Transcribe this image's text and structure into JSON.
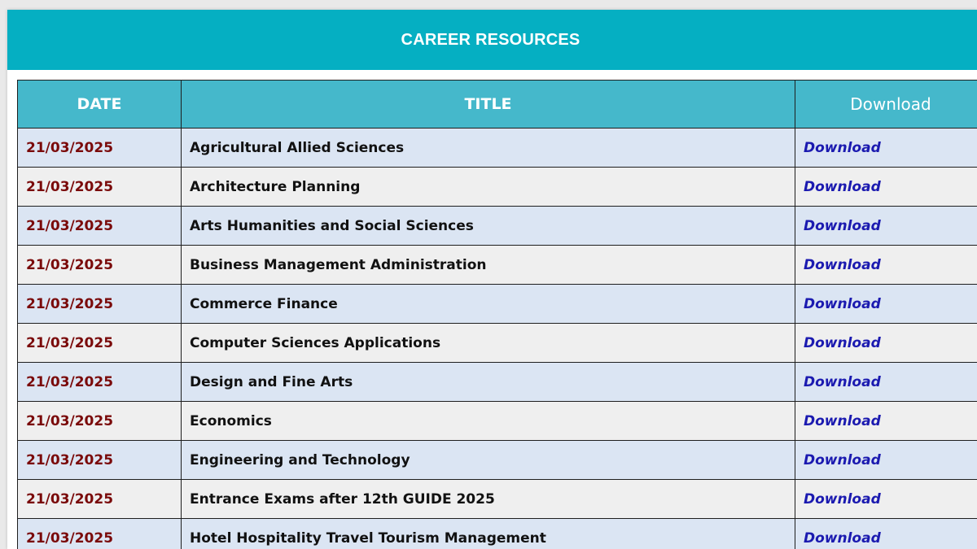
{
  "banner": {
    "title": "CAREER RESOURCES"
  },
  "table": {
    "headers": {
      "date": "DATE",
      "title": "TITLE",
      "download": "Download"
    },
    "rows": [
      {
        "date": "21/03/2025",
        "title": "Agricultural Allied Sciences",
        "download": "Download"
      },
      {
        "date": "21/03/2025",
        "title": "Architecture Planning",
        "download": "Download"
      },
      {
        "date": "21/03/2025",
        "title": "Arts Humanities and Social Sciences",
        "download": "Download"
      },
      {
        "date": "21/03/2025",
        "title": "Business Management Administration",
        "download": "Download"
      },
      {
        "date": "21/03/2025",
        "title": "Commerce Finance",
        "download": "Download"
      },
      {
        "date": "21/03/2025",
        "title": "Computer Sciences Applications",
        "download": "Download"
      },
      {
        "date": "21/03/2025",
        "title": "Design and Fine Arts",
        "download": "Download"
      },
      {
        "date": "21/03/2025",
        "title": "Economics",
        "download": "Download"
      },
      {
        "date": "21/03/2025",
        "title": "Engineering and Technology",
        "download": "Download"
      },
      {
        "date": "21/03/2025",
        "title": "Entrance Exams after 12th GUIDE 2025",
        "download": "Download"
      },
      {
        "date": "21/03/2025",
        "title": "Hotel Hospitality Travel Tourism Management",
        "download": "Download"
      }
    ]
  },
  "colors": {
    "banner": "#05afc2",
    "header": "#45b8cb",
    "row_odd": "#dbe5f3",
    "row_even": "#efefef",
    "date_text": "#7a0a0a",
    "link_text": "#1b1ab0"
  }
}
